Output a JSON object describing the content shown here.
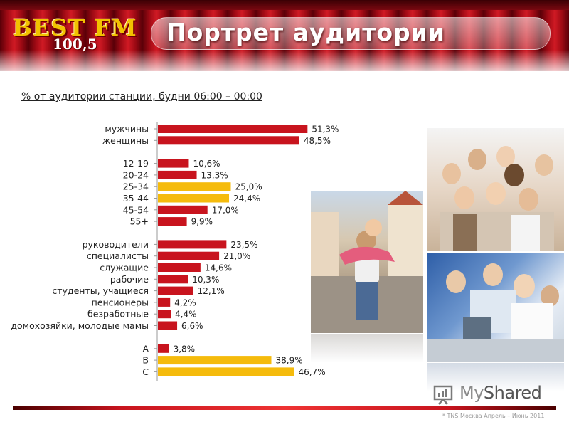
{
  "header": {
    "logo_name": "BEST FM",
    "logo_freq": "100,5",
    "title": "Портрет аудитории"
  },
  "subtitle": "% от аудитории станции, будни 06:00 – 00:00",
  "colors": {
    "bar_red": "#c8141e",
    "bar_yellow": "#f5bb0c",
    "header_red": "#9e0a14"
  },
  "chart_data": {
    "type": "bar",
    "orientation": "horizontal",
    "groups": [
      {
        "categories": [
          "мужчины",
          "женщины"
        ],
        "values": [
          51.3,
          48.5
        ],
        "labels": [
          "51,3%",
          "48,5%"
        ],
        "highlight": [
          false,
          false
        ]
      },
      {
        "categories": [
          "12-19",
          "20-24",
          "25-34",
          "35-44",
          "45-54",
          "55+"
        ],
        "values": [
          10.6,
          13.3,
          25.0,
          24.4,
          17.0,
          9.9
        ],
        "labels": [
          "10,6%",
          "13,3%",
          "25,0%",
          "24,4%",
          "17,0%",
          "9,9%"
        ],
        "highlight": [
          false,
          false,
          true,
          true,
          false,
          false
        ]
      },
      {
        "categories": [
          "руководители",
          "специалисты",
          "служащие",
          "рабочие",
          "студенты, учащиеся",
          "пенсионеры",
          "безработные",
          "домохозяйки, молодые мамы"
        ],
        "values": [
          23.5,
          21.0,
          14.6,
          10.3,
          12.1,
          4.2,
          4.4,
          6.6
        ],
        "labels": [
          "23,5%",
          "21,0%",
          "14,6%",
          "10,3%",
          "12,1%",
          "4,2%",
          "4,4%",
          "6,6%"
        ],
        "highlight": [
          false,
          false,
          false,
          false,
          false,
          false,
          false,
          false
        ]
      },
      {
        "categories": [
          "A",
          "B",
          "C"
        ],
        "values": [
          3.8,
          38.9,
          46.7
        ],
        "labels": [
          "3,8%",
          "38,9%",
          "46,7%"
        ],
        "highlight": [
          false,
          true,
          true
        ]
      }
    ]
  },
  "photos": {
    "couple": "couple-photo",
    "crowd": "crowd-photo",
    "office": "office-photo"
  },
  "watermark": {
    "part1": "My",
    "part2": "Shared"
  },
  "footer_note": "* TNS Москва Апрель – Июнь 2011"
}
